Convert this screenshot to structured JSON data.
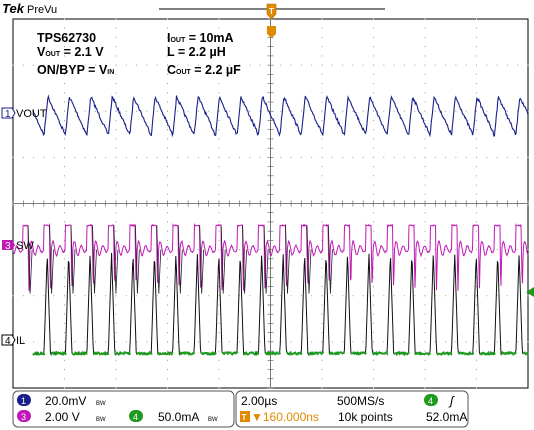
{
  "header": {
    "brand": "Tek",
    "mode": "PreVu"
  },
  "annotations": {
    "part": "TPS62730",
    "vout_main": "V",
    "vout_sub": "OUT",
    "vout_value": " = 2.1 V",
    "onbyp_main": "ON/BYP = V",
    "onbyp_sub": "IN",
    "iout_main": "I",
    "iout_sub": "OUT",
    "iout_value": " = 10mA",
    "l_text": "L = 2.2 µH",
    "cout_main": "C",
    "cout_sub": "OUT",
    "cout_value": " = 2.2 µF"
  },
  "colors": {
    "ch1": "#1a1f8a",
    "ch3": "#c018b8",
    "ch4": "#1f9a1f",
    "ch4_trace_dark": "#111111",
    "trigger": "#e08a00",
    "grid": "#9a9a9a",
    "frame": "#000000"
  },
  "chart_data": {
    "type": "line",
    "title": "",
    "time_per_div": "2.00µs",
    "divisions_x": 10,
    "divisions_y": 8,
    "grid": true,
    "trigger_position": "top-center",
    "trigger_level_marker": "right",
    "series": [
      {
        "name": "VOUT",
        "channel": 1,
        "scale_per_div": "20.0mV",
        "coupling": "AC",
        "shape": "sawtooth ripple",
        "ripple_mV_pp": 20,
        "period_us": 0.833,
        "baseline_div": 2.1
      },
      {
        "name": "SW",
        "channel": 3,
        "scale_per_div": "2.00 V",
        "shape": "pulse train with ringing",
        "high_V": 2.1,
        "low_V": 0,
        "period_us": 0.833,
        "baseline_div": 5.0
      },
      {
        "name": "IL",
        "channel": 4,
        "scale_per_div": "50.0mA",
        "shape": "triangular current pulses",
        "peak_mA": 115,
        "period_us": 0.833,
        "baseline_div": 7.25
      }
    ]
  },
  "status": {
    "ch1_num": "1",
    "ch1_scale": "20.0mV",
    "ch1_bw": "BW",
    "ch3_num": "3",
    "ch3_scale": "2.00 V",
    "ch3_bw": "BW",
    "ch4_num": "4",
    "ch4_scale": "50.0mA",
    "ch4_bw": "BW",
    "timebase": "2.00µs",
    "sample_rate": "500MS/s",
    "trig_ch": "4",
    "trig_slope": "ʃ",
    "delay": "▼160.000ns",
    "record_length": "10k points",
    "trig_level": "52.0mA",
    "trig_T": "T"
  },
  "channel_labels": {
    "ch1": "VOUT",
    "ch3": "SW",
    "ch4": "IL",
    "ch1_num": "1",
    "ch3_num": "3",
    "ch4_num": "4"
  }
}
